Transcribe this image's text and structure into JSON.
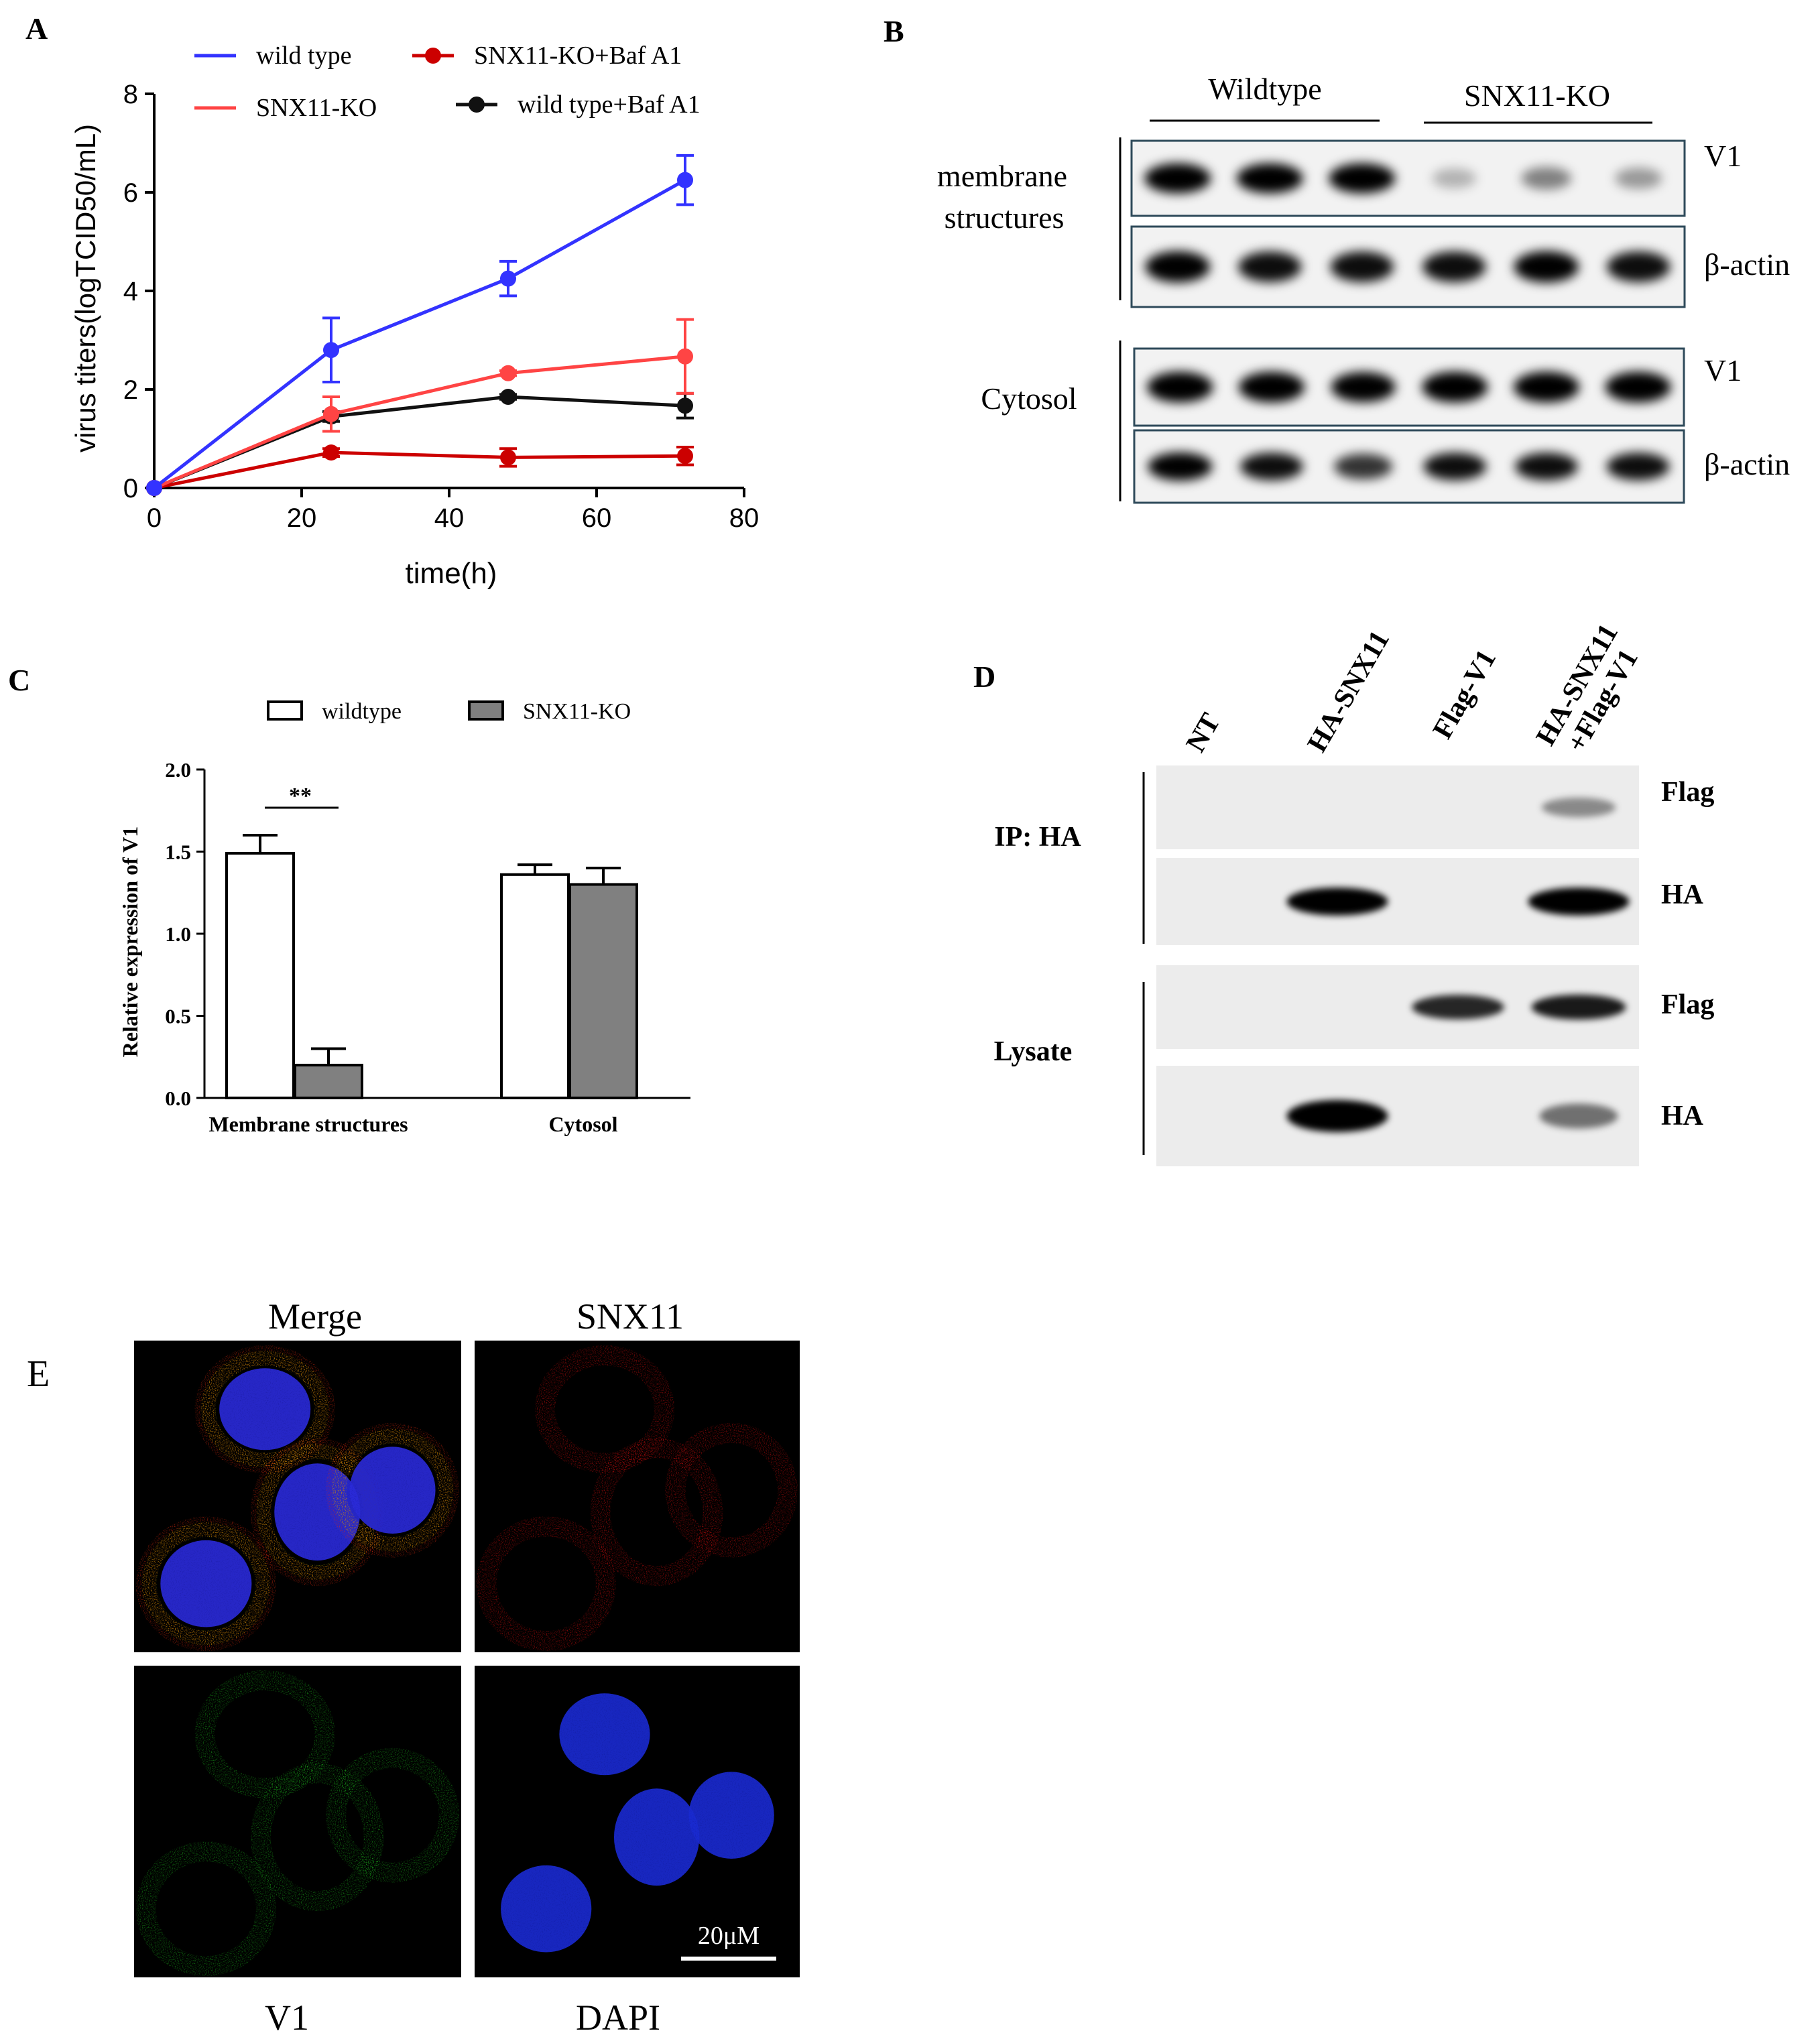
{
  "panels": {
    "A": {
      "letter": "A",
      "chart_data": {
        "type": "line",
        "xlabel": "time(h)",
        "ylabel": "virus titers(logTCID50/mL)",
        "xlim": [
          0,
          80
        ],
        "ylim": [
          0,
          8
        ],
        "xticks": [
          "0",
          "20",
          "40",
          "60",
          "80"
        ],
        "yticks": [
          "0",
          "2",
          "4",
          "6",
          "8"
        ],
        "grid": false,
        "legend_position": "top",
        "series": [
          {
            "name": "wild type",
            "color": "#3333ff",
            "marker": false,
            "x": [
              0,
              24,
              48,
              72
            ],
            "y": [
              0,
              2.8,
              4.25,
              6.25
            ],
            "err": [
              0,
              0.65,
              0.35,
              0.5
            ]
          },
          {
            "name": "SNX11-KO",
            "color": "#ff4444",
            "marker": false,
            "x": [
              0,
              24,
              48,
              72
            ],
            "y": [
              0,
              1.5,
              2.33,
              2.67
            ],
            "err": [
              0,
              0.35,
              0.05,
              0.75
            ]
          },
          {
            "name": "SNX11-KO+Baf A1",
            "color": "#cc0000",
            "marker": true,
            "x": [
              0,
              24,
              48,
              72
            ],
            "y": [
              0,
              0.72,
              0.62,
              0.65
            ],
            "err": [
              0,
              0.08,
              0.18,
              0.18
            ]
          },
          {
            "name": "wild type+Baf A1",
            "color": "#111111",
            "marker": true,
            "x": [
              0,
              24,
              48,
              72
            ],
            "y": [
              0,
              1.45,
              1.85,
              1.67
            ],
            "err": [
              0,
              0.1,
              0.05,
              0.25
            ]
          }
        ]
      }
    },
    "B": {
      "letter": "B",
      "groups": [
        "Wildtype",
        "SNX11-KO"
      ],
      "sections": [
        {
          "label_lines": [
            "membrane",
            "structures"
          ],
          "bands": [
            {
              "name": "V1",
              "intensities": [
                1,
                1,
                1,
                0.25,
                0.45,
                0.35
              ]
            },
            {
              "name": "β-actin",
              "intensities": [
                0.95,
                0.9,
                0.9,
                0.9,
                0.95,
                0.9
              ]
            }
          ]
        },
        {
          "label_lines": [
            "Cytosol"
          ],
          "bands": [
            {
              "name": "V1",
              "intensities": [
                1,
                1,
                0.95,
                1,
                1,
                1
              ]
            },
            {
              "name": "β-actin",
              "intensities": [
                0.95,
                0.9,
                0.75,
                0.9,
                0.9,
                0.9
              ]
            }
          ]
        }
      ]
    },
    "C": {
      "letter": "C",
      "chart_data": {
        "type": "bar",
        "categories": [
          "Membrane structures",
          "Cytosol"
        ],
        "ylabel": "Relative expression of V1",
        "ylim": [
          0,
          2.0
        ],
        "yticks": [
          "0.0",
          "0.5",
          "1.0",
          "1.5",
          "2.0"
        ],
        "legend_position": "top",
        "significance": "**",
        "series": [
          {
            "name": "wildtype",
            "color": "#ffffff",
            "values": [
              1.49,
              1.36
            ],
            "err": [
              0.11,
              0.06
            ]
          },
          {
            "name": "SNX11-KO",
            "color": "#808080",
            "values": [
              0.2,
              1.3
            ],
            "err": [
              0.1,
              0.1
            ]
          }
        ]
      }
    },
    "D": {
      "letter": "D",
      "lanes": [
        "NT",
        "HA-SNX11",
        "Flag-V1",
        "HA-SNX11",
        "+Flag-V1"
      ],
      "sections": [
        {
          "label": "IP: HA",
          "bands": [
            {
              "name": "Flag",
              "intensities": [
                0,
                0,
                0,
                0.4
              ]
            },
            {
              "name": "HA",
              "intensities": [
                0,
                1,
                0,
                1
              ]
            }
          ]
        },
        {
          "label": "Lysate",
          "bands": [
            {
              "name": "Flag",
              "intensities": [
                0,
                0,
                0.8,
                0.85
              ]
            },
            {
              "name": "HA",
              "intensities": [
                0,
                1,
                0,
                0.5
              ]
            }
          ]
        }
      ]
    },
    "E": {
      "letter": "E",
      "labels": {
        "merge": "Merge",
        "snx11": "SNX11",
        "v1": "V1",
        "dapi": "DAPI"
      },
      "scale_bar": "20μM"
    }
  }
}
